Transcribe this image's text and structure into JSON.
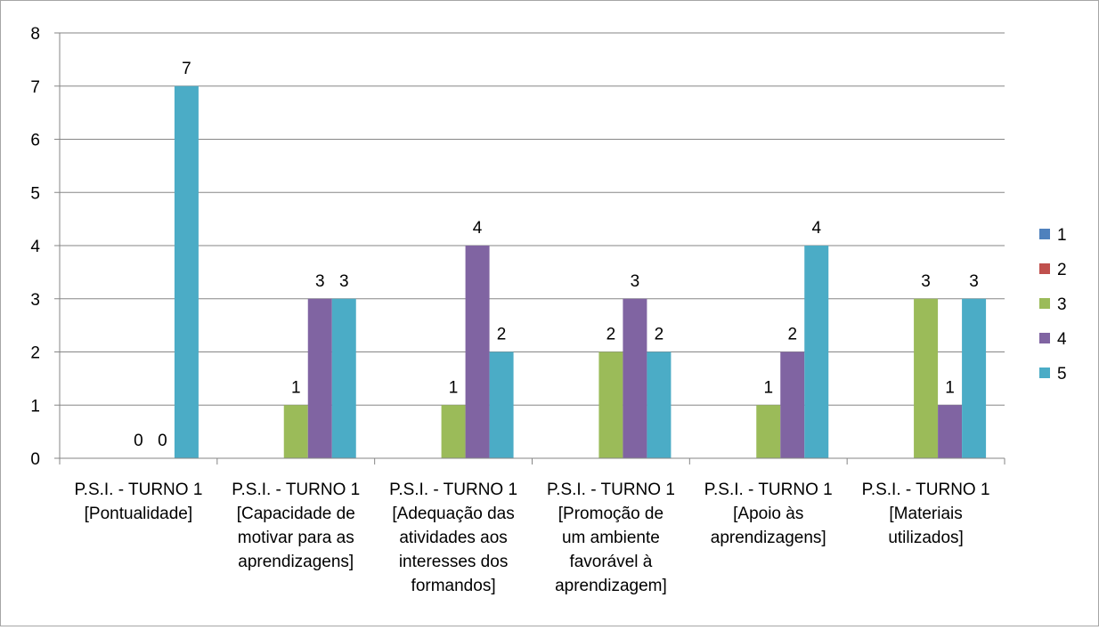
{
  "chart_data": {
    "type": "bar",
    "title": "",
    "xlabel": "",
    "ylabel": "",
    "ylim": [
      0,
      8
    ],
    "yticks": [
      0,
      1,
      2,
      3,
      4,
      5,
      6,
      7,
      8
    ],
    "grid": true,
    "legend_position": "right",
    "categories": [
      [
        "P.S.I. - TURNO 1",
        "[Pontualidade]"
      ],
      [
        "P.S.I. - TURNO 1",
        "[Capacidade de",
        "motivar para as",
        "aprendizagens]"
      ],
      [
        "P.S.I. - TURNO 1",
        "[Adequação das",
        "atividades aos",
        "interesses dos",
        "formandos]"
      ],
      [
        "P.S.I. - TURNO 1",
        "[Promoção de",
        "um ambiente",
        "favorável à",
        "aprendizagem]"
      ],
      [
        "P.S.I. - TURNO 1",
        "[Apoio às",
        "aprendizagens]"
      ],
      [
        "P.S.I. - TURNO 1",
        "[Materiais",
        "utilizados]"
      ]
    ],
    "series": [
      {
        "name": "1",
        "color": "#4f81bd",
        "values": [
          null,
          null,
          null,
          null,
          null,
          null
        ]
      },
      {
        "name": "2",
        "color": "#c0504d",
        "values": [
          null,
          null,
          null,
          null,
          null,
          null
        ]
      },
      {
        "name": "3",
        "color": "#9bbb59",
        "values": [
          0,
          1,
          1,
          2,
          1,
          3
        ]
      },
      {
        "name": "4",
        "color": "#8064a2",
        "values": [
          0,
          3,
          4,
          3,
          2,
          1
        ]
      },
      {
        "name": "5",
        "color": "#4bacc6",
        "values": [
          7,
          3,
          2,
          2,
          4,
          3
        ]
      }
    ]
  }
}
